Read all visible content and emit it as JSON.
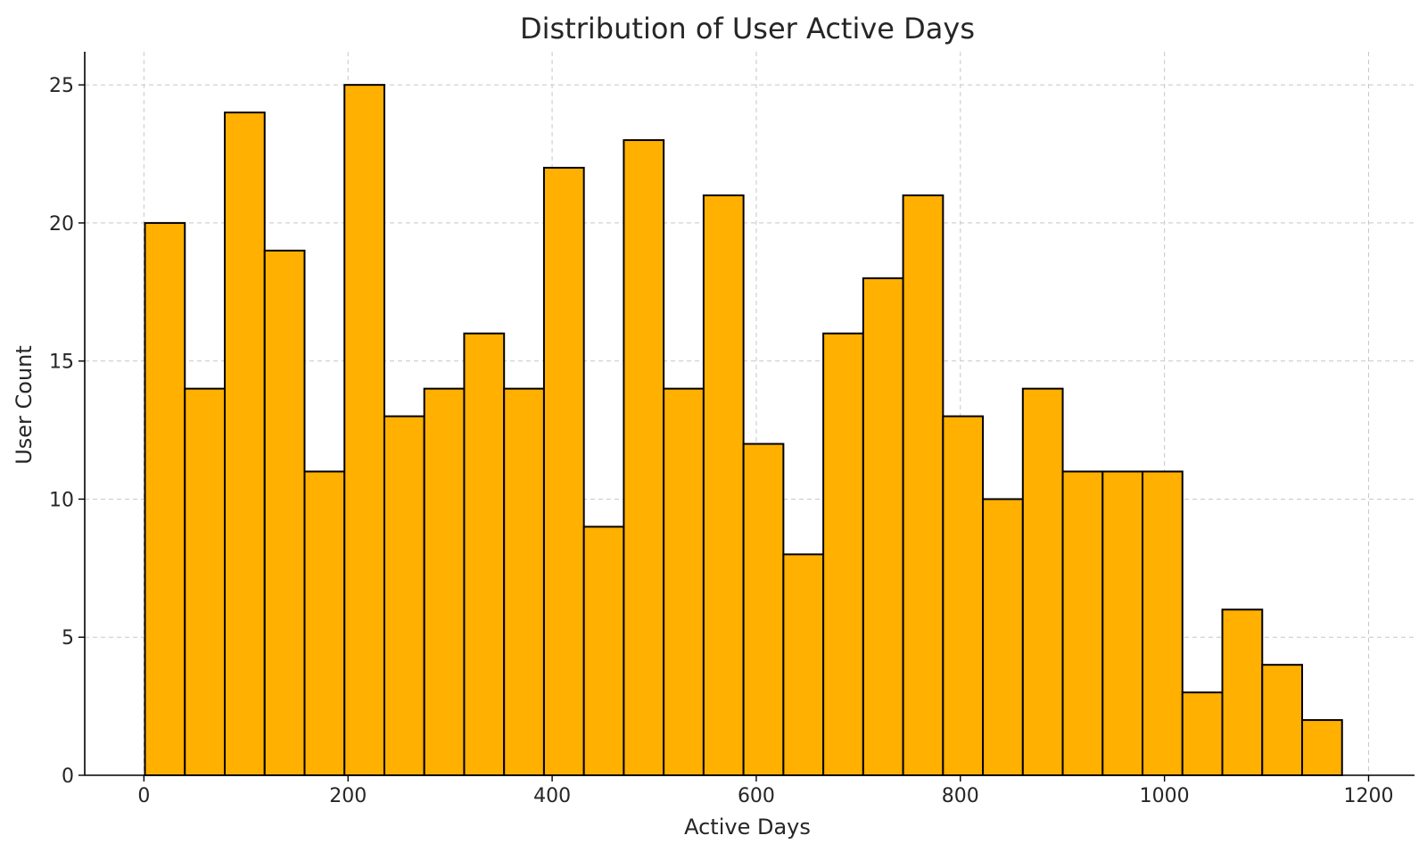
{
  "chart_data": {
    "type": "bar",
    "title": "Distribution of User Active Days",
    "xlabel": "Active Days",
    "ylabel": "User Count",
    "x_range": [
      -58,
      1245
    ],
    "ylim": [
      0,
      26.2
    ],
    "x_ticks": [
      0,
      200,
      400,
      600,
      800,
      1000,
      1200
    ],
    "y_ticks": [
      0,
      5,
      10,
      15,
      20,
      25
    ],
    "grid": true,
    "bar_color": "#FFB000",
    "edge_color": "#000000",
    "bin_edges": [
      1,
      40.1,
      79.2,
      118.3,
      157.4,
      196.5,
      235.6,
      274.7,
      313.8,
      352.9,
      392,
      431.1,
      470.2,
      509.3,
      548.4,
      587.5,
      626.6,
      665.7,
      704.8,
      743.9,
      783,
      822.1,
      861.2,
      900.3,
      939.4,
      978.5,
      1017.6,
      1056.7,
      1095.8,
      1134.9,
      1174
    ],
    "values": [
      20,
      14,
      24,
      19,
      11,
      25,
      13,
      14,
      16,
      14,
      22,
      9,
      23,
      14,
      21,
      12,
      8,
      16,
      18,
      21,
      13,
      10,
      14,
      11,
      11,
      11,
      3,
      6,
      4,
      2
    ]
  }
}
